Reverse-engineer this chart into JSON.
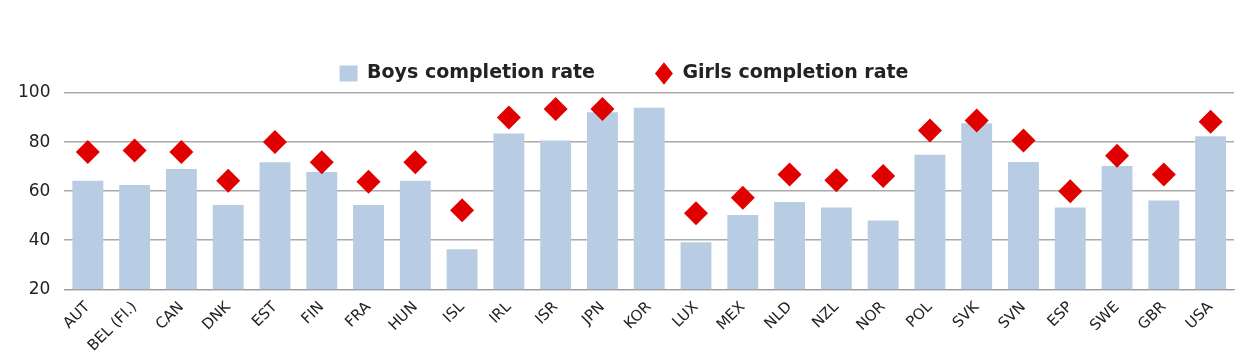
{
  "chart_data": {
    "type": "bar",
    "categories": [
      "AUT",
      "BEL (Fl.)",
      "CAN",
      "DNK",
      "EST",
      "FIN",
      "FRA",
      "HUN",
      "ISL",
      "IRL",
      "ISR",
      "JPN",
      "KOR",
      "LUX",
      "MEX",
      "NLD",
      "NZL",
      "NOR",
      "POL",
      "SVK",
      "SVN",
      "ESP",
      "SWE",
      "GBR",
      "USA"
    ],
    "series": [
      {
        "name": "Boys completion rate",
        "color": "#b8cce4",
        "values": [
          64.2,
          62.5,
          69,
          54.4,
          71.8,
          67.8,
          54.4,
          64.2,
          36.3,
          83.5,
          80.6,
          92.2,
          94,
          39.2,
          50.3,
          55.6,
          53.3,
          48,
          74.8,
          87.7,
          71.9,
          53.3,
          70.3,
          56.2,
          82.4
        ]
      },
      {
        "name": "Girls completion rate",
        "type": "scatter",
        "marker": "diamond",
        "color": "#e00000",
        "values": [
          76,
          76.6,
          76,
          64.2,
          80,
          71.8,
          63.8,
          71.8,
          52.2,
          90,
          93.5,
          93.5,
          null,
          51,
          57.3,
          66.8,
          64.4,
          66.2,
          84.7,
          88.8,
          80.6,
          60,
          74.4,
          66.8,
          88.3
        ]
      }
    ],
    "ylim": [
      20,
      100
    ],
    "yticks": [
      20,
      40,
      60,
      80,
      100
    ],
    "grid": "y",
    "legend": "top"
  }
}
